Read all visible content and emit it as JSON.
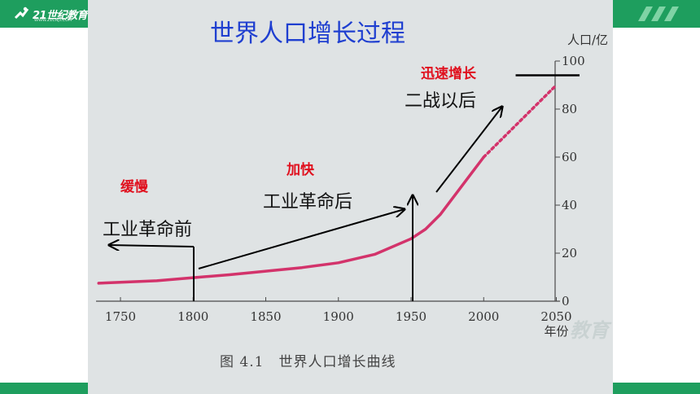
{
  "header": {
    "logo_text": "21世纪教育",
    "logo_subtext": "WWW.21CNJY.COM"
  },
  "slide": {
    "title": "世界人口增长过程",
    "annotations": {
      "slow_label": "缓慢",
      "slow_period": "工业革命前",
      "faster_label": "加快",
      "faster_period": "工业革命后",
      "rapid_label": "迅速增长",
      "rapid_period": "二战以后"
    },
    "caption": "图 4.1　世界人口增长曲线",
    "watermark": "教育"
  },
  "colors": {
    "brand_green": "#1e9e5e",
    "title_blue": "#1f3fd0",
    "annotation_red": "#e0101e",
    "curve": "#d3336b",
    "axis": "#4a4a4a"
  },
  "chart_data": {
    "type": "line",
    "title": "世界人口增长曲线",
    "xlabel": "年份",
    "ylabel": "人口/亿",
    "xlim": [
      1735,
      2052
    ],
    "ylim": [
      0,
      100
    ],
    "x_ticks": [
      "1750",
      "1800",
      "1850",
      "1900",
      "1950",
      "2000",
      "2050"
    ],
    "y_ticks": [
      "0",
      "20",
      "40",
      "60",
      "80",
      "100"
    ],
    "y_axis_position": "right",
    "grid": false,
    "series": [
      {
        "x": [
          1735,
          1750,
          1775,
          1800,
          1825,
          1850,
          1875,
          1900,
          1925,
          1950,
          1960,
          1970,
          1980,
          1990,
          2000
        ],
        "y": [
          7.5,
          7.9,
          8.5,
          9.8,
          11,
          12.5,
          14,
          16,
          19.5,
          26,
          30,
          36,
          44,
          52,
          60
        ],
        "style": "solid"
      },
      {
        "x": [
          2000,
          2010,
          2020,
          2030,
          2040,
          2050
        ],
        "y": [
          60,
          66,
          72,
          78,
          84,
          90
        ],
        "style": "dotted"
      }
    ],
    "marker_line": {
      "y": 90,
      "x_from": 2022,
      "x_to": 2070
    }
  }
}
